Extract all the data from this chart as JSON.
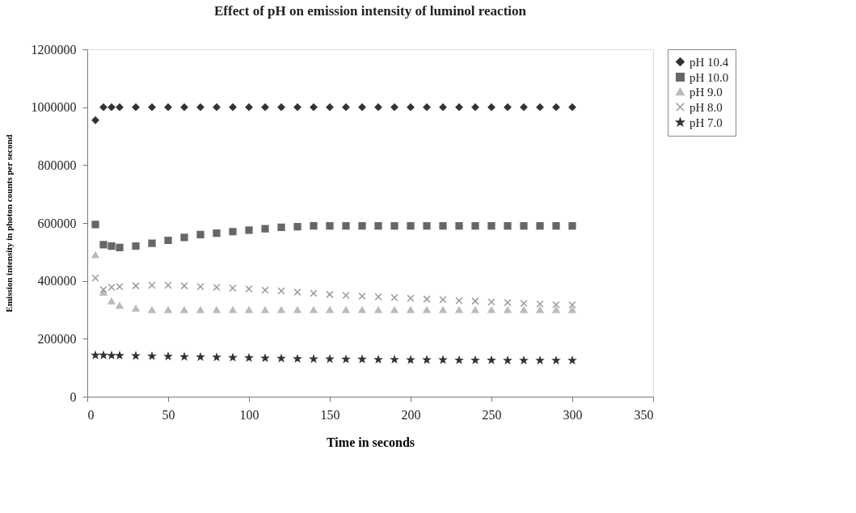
{
  "chart_data": {
    "type": "scatter",
    "title": "Effect of pH  on emission intensity of luminol reaction",
    "xlabel": "Time in seconds",
    "ylabel": "Emission intensity in photon counts per second",
    "x": [
      5,
      10,
      15,
      20,
      30,
      40,
      50,
      60,
      70,
      80,
      90,
      100,
      110,
      120,
      130,
      140,
      150,
      160,
      170,
      180,
      190,
      200,
      210,
      220,
      230,
      240,
      250,
      260,
      270,
      280,
      290,
      300
    ],
    "series": [
      {
        "name": "pH 10.4",
        "color": "#333333",
        "marker": "diamond",
        "values": [
          955000,
          1000000,
          1000000,
          1000000,
          1000000,
          1000000,
          1000000,
          1000000,
          1000000,
          1000000,
          1000000,
          1000000,
          1000000,
          1000000,
          1000000,
          1000000,
          1000000,
          1000000,
          1000000,
          1000000,
          1000000,
          1000000,
          1000000,
          1000000,
          1000000,
          1000000,
          1000000,
          1000000,
          1000000,
          1000000,
          1000000,
          1000000
        ]
      },
      {
        "name": "pH 10.0",
        "color": "#666666",
        "marker": "square",
        "values": [
          595000,
          525000,
          520000,
          515000,
          520000,
          530000,
          540000,
          550000,
          560000,
          565000,
          570000,
          575000,
          580000,
          585000,
          587000,
          590000,
          590000,
          590000,
          590000,
          590000,
          590000,
          590000,
          590000,
          590000,
          590000,
          590000,
          590000,
          590000,
          590000,
          590000,
          590000,
          590000
        ]
      },
      {
        "name": "pH 9.0",
        "color": "#bbbbbb",
        "marker": "triangle",
        "values": [
          490000,
          360000,
          330000,
          315000,
          305000,
          300000,
          300000,
          300000,
          300000,
          300000,
          300000,
          300000,
          300000,
          300000,
          300000,
          300000,
          300000,
          300000,
          300000,
          300000,
          300000,
          300000,
          300000,
          300000,
          300000,
          300000,
          300000,
          300000,
          300000,
          300000,
          300000,
          300000
        ]
      },
      {
        "name": "pH 8.0",
        "color": "#999999",
        "marker": "cross",
        "values": [
          410000,
          370000,
          378000,
          380000,
          383000,
          385000,
          385000,
          383000,
          380000,
          378000,
          375000,
          372000,
          368000,
          365000,
          361000,
          357000,
          353000,
          350000,
          347000,
          345000,
          342000,
          340000,
          337000,
          335000,
          332000,
          330000,
          327000,
          325000,
          322000,
          320000,
          318000,
          317000
        ]
      },
      {
        "name": "pH 7.0",
        "color": "#333333",
        "marker": "star",
        "values": [
          143000,
          143000,
          142000,
          142000,
          141000,
          140000,
          139000,
          138000,
          137000,
          136000,
          135000,
          134000,
          133000,
          132000,
          131000,
          130000,
          130000,
          129000,
          129000,
          128000,
          128000,
          127000,
          127000,
          127000,
          126000,
          126000,
          126000,
          125000,
          125000,
          125000,
          125000,
          125000
        ]
      }
    ],
    "xlim": [
      0,
      350
    ],
    "xticks": [
      0,
      50,
      100,
      150,
      200,
      250,
      300,
      350
    ],
    "ylim": [
      0,
      1200000
    ],
    "yticks": [
      0,
      200000,
      400000,
      600000,
      800000,
      1000000,
      1200000
    ],
    "grid": false,
    "legend": "right"
  }
}
